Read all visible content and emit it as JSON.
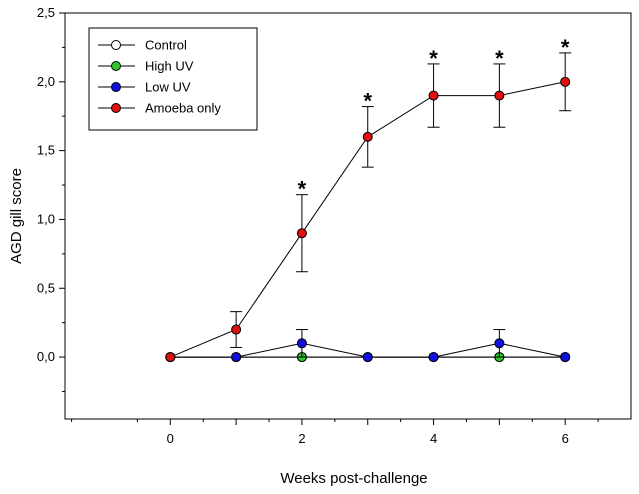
{
  "chart_data": {
    "type": "line",
    "title": "",
    "xlabel": "Weeks post-challenge",
    "ylabel": "AGD gill score",
    "xlim": [
      -1.6,
      7.0
    ],
    "ylim": [
      -0.45,
      2.5
    ],
    "x_ticks": [
      0,
      1,
      2,
      3,
      4,
      5,
      6
    ],
    "x_tick_labels": [
      "0",
      "",
      "2",
      "",
      "4",
      "",
      "6"
    ],
    "x_minor_ticks": [
      -1.5,
      -0.5,
      0.5,
      1.5,
      2.5,
      3.5,
      4.5,
      5.5,
      6.5
    ],
    "y_ticks": [
      0,
      0.5,
      1.0,
      1.5,
      2.0,
      2.5
    ],
    "y_tick_labels": [
      "0,0",
      "0,5",
      "1,0",
      "1,5",
      "2,0",
      "2,5"
    ],
    "y_minor_ticks": [
      -0.25,
      0.25,
      0.75,
      1.25,
      1.75,
      2.25
    ],
    "grid": false,
    "legend_position": "top-left",
    "x": [
      0,
      1,
      2,
      3,
      4,
      5,
      6
    ],
    "series": [
      {
        "name": "Control",
        "marker_color": "#ffffff",
        "values": [
          0,
          0,
          0,
          0,
          0,
          0,
          0
        ],
        "errors": [
          0,
          0,
          0,
          0,
          0,
          0,
          0
        ]
      },
      {
        "name": "High UV",
        "marker_color": "#2ec82e",
        "values": [
          0,
          0,
          0,
          0,
          0,
          0,
          0
        ],
        "errors": [
          0,
          0,
          0,
          0,
          0,
          0,
          0
        ]
      },
      {
        "name": "Low UV",
        "marker_color": "#1010e0",
        "values": [
          0,
          0,
          0.1,
          0,
          0,
          0.1,
          0
        ],
        "errors": [
          0,
          0,
          0.1,
          0,
          0,
          0.1,
          0
        ]
      },
      {
        "name": "Amoeba only",
        "marker_color": "#e01010",
        "values": [
          0,
          0.2,
          0.9,
          1.6,
          1.9,
          1.9,
          2.0
        ],
        "errors": [
          0,
          0.13,
          0.28,
          0.22,
          0.23,
          0.23,
          0.21
        ]
      }
    ],
    "annotations": [
      {
        "text": "*",
        "x": 2,
        "y": 1.26
      },
      {
        "text": "*",
        "x": 3,
        "y": 1.9
      },
      {
        "text": "*",
        "x": 4,
        "y": 2.21
      },
      {
        "text": "*",
        "x": 5,
        "y": 2.21
      },
      {
        "text": "*",
        "x": 6,
        "y": 2.29
      }
    ]
  }
}
